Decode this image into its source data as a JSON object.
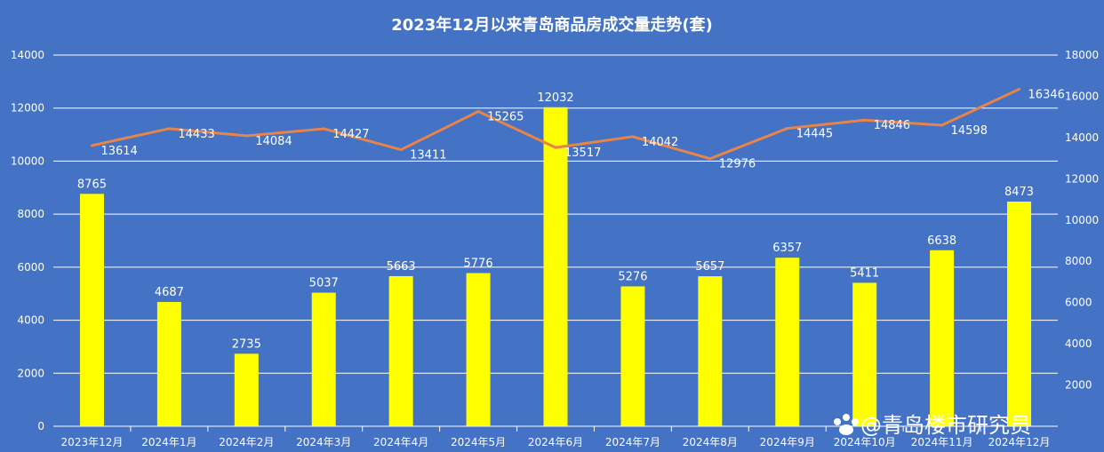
{
  "chart_data": {
    "title": "2023年12月以来青岛商品房成交量走势(套)",
    "type": "bar",
    "categories": [
      "2023年12月",
      "2024年1月",
      "2024年2月",
      "2024年3月",
      "2024年4月",
      "2024年5月",
      "2024年6月",
      "2024年7月",
      "2024年8月",
      "2024年9月",
      "2024年10月",
      "2024年11月",
      "2024年12月"
    ],
    "series": [
      {
        "type": "bar",
        "axis": "left",
        "color": "#FFFF00",
        "values": [
          8765,
          4687,
          2735,
          5037,
          5663,
          5776,
          12032,
          5276,
          5657,
          6357,
          5411,
          6638,
          8473
        ]
      },
      {
        "type": "line",
        "axis": "right",
        "color": "#E8834A",
        "values": [
          13614,
          14433,
          14084,
          14427,
          13411,
          15265,
          13517,
          14042,
          12976,
          14445,
          14846,
          14598,
          16346
        ]
      }
    ],
    "y_left": {
      "min": 0,
      "max": 14000,
      "ticks": [
        0,
        2000,
        4000,
        6000,
        8000,
        10000,
        12000,
        14000
      ]
    },
    "y_right": {
      "min": 0,
      "max": 18000,
      "ticks": [
        2000,
        4000,
        6000,
        8000,
        10000,
        12000,
        14000,
        16000,
        18000
      ]
    },
    "grid": true
  },
  "watermark": "@青岛楼市研究员"
}
